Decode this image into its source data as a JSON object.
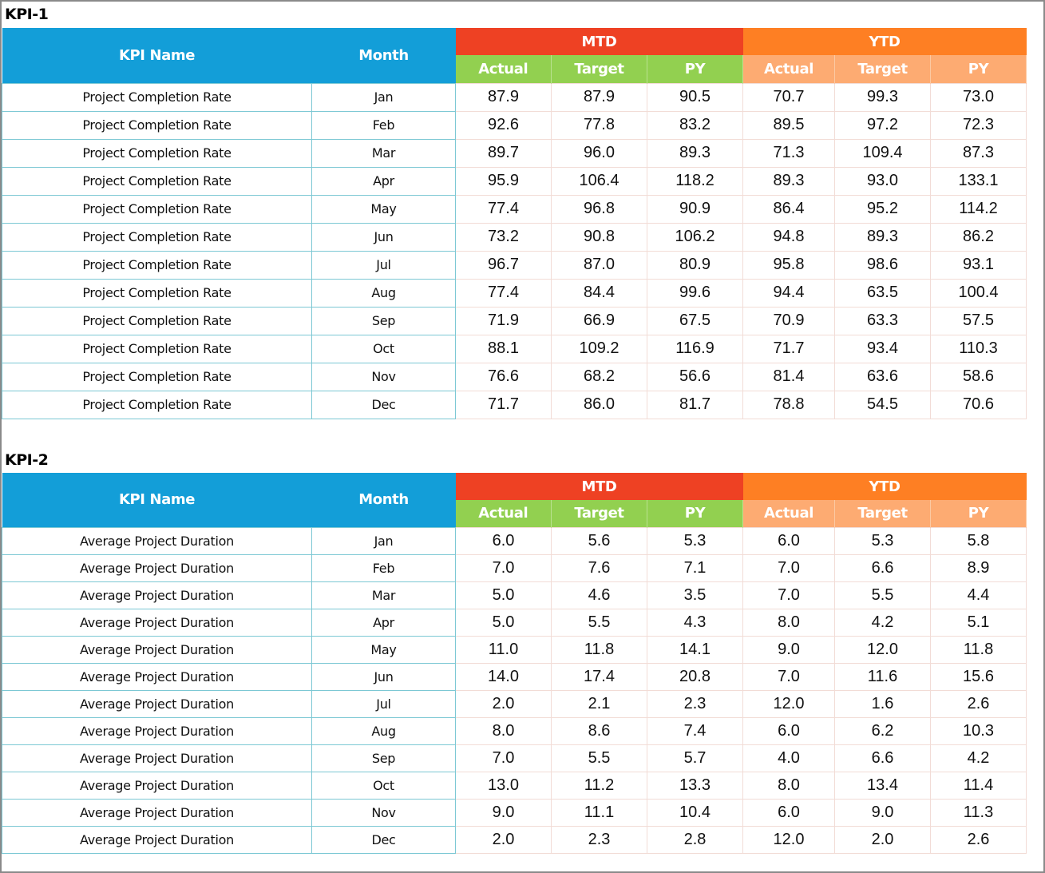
{
  "tables": [
    {
      "title": "KPI-1",
      "headers": {
        "kpi_name": "KPI Name",
        "month": "Month",
        "mtd": "MTD",
        "ytd": "YTD",
        "sub": [
          "Actual",
          "Target",
          "PY",
          "Actual",
          "Target",
          "PY"
        ]
      },
      "rows": [
        {
          "name": "Project Completion Rate",
          "month": "Jan",
          "vals": [
            "87.9",
            "87.9",
            "90.5",
            "70.7",
            "99.3",
            "73.0"
          ]
        },
        {
          "name": "Project Completion Rate",
          "month": "Feb",
          "vals": [
            "92.6",
            "77.8",
            "83.2",
            "89.5",
            "97.2",
            "72.3"
          ]
        },
        {
          "name": "Project Completion Rate",
          "month": "Mar",
          "vals": [
            "89.7",
            "96.0",
            "89.3",
            "71.3",
            "109.4",
            "87.3"
          ]
        },
        {
          "name": "Project Completion Rate",
          "month": "Apr",
          "vals": [
            "95.9",
            "106.4",
            "118.2",
            "89.3",
            "93.0",
            "133.1"
          ]
        },
        {
          "name": "Project Completion Rate",
          "month": "May",
          "vals": [
            "77.4",
            "96.8",
            "90.9",
            "86.4",
            "95.2",
            "114.2"
          ]
        },
        {
          "name": "Project Completion Rate",
          "month": "Jun",
          "vals": [
            "73.2",
            "90.8",
            "106.2",
            "94.8",
            "89.3",
            "86.2"
          ]
        },
        {
          "name": "Project Completion Rate",
          "month": "Jul",
          "vals": [
            "96.7",
            "87.0",
            "80.9",
            "95.8",
            "98.6",
            "93.1"
          ]
        },
        {
          "name": "Project Completion Rate",
          "month": "Aug",
          "vals": [
            "77.4",
            "84.4",
            "99.6",
            "94.4",
            "63.5",
            "100.4"
          ]
        },
        {
          "name": "Project Completion Rate",
          "month": "Sep",
          "vals": [
            "71.9",
            "66.9",
            "67.5",
            "70.9",
            "63.3",
            "57.5"
          ]
        },
        {
          "name": "Project Completion Rate",
          "month": "Oct",
          "vals": [
            "88.1",
            "109.2",
            "116.9",
            "71.7",
            "93.4",
            "110.3"
          ]
        },
        {
          "name": "Project Completion Rate",
          "month": "Nov",
          "vals": [
            "76.6",
            "68.2",
            "56.6",
            "81.4",
            "63.6",
            "58.6"
          ]
        },
        {
          "name": "Project Completion Rate",
          "month": "Dec",
          "vals": [
            "71.7",
            "86.0",
            "81.7",
            "78.8",
            "54.5",
            "70.6"
          ]
        }
      ]
    },
    {
      "title": "KPI-2",
      "headers": {
        "kpi_name": "KPI Name",
        "month": "Month",
        "mtd": "MTD",
        "ytd": "YTD",
        "sub": [
          "Actual",
          "Target",
          "PY",
          "Actual",
          "Target",
          "PY"
        ]
      },
      "rows": [
        {
          "name": "Average Project Duration",
          "month": "Jan",
          "vals": [
            "6.0",
            "5.6",
            "5.3",
            "6.0",
            "5.3",
            "5.8"
          ]
        },
        {
          "name": "Average Project Duration",
          "month": "Feb",
          "vals": [
            "7.0",
            "7.6",
            "7.1",
            "7.0",
            "6.6",
            "8.9"
          ]
        },
        {
          "name": "Average Project Duration",
          "month": "Mar",
          "vals": [
            "5.0",
            "4.6",
            "3.5",
            "7.0",
            "5.5",
            "4.4"
          ]
        },
        {
          "name": "Average Project Duration",
          "month": "Apr",
          "vals": [
            "5.0",
            "5.5",
            "4.3",
            "8.0",
            "4.2",
            "5.1"
          ]
        },
        {
          "name": "Average Project Duration",
          "month": "May",
          "vals": [
            "11.0",
            "11.8",
            "14.1",
            "9.0",
            "12.0",
            "11.8"
          ]
        },
        {
          "name": "Average Project Duration",
          "month": "Jun",
          "vals": [
            "14.0",
            "17.4",
            "20.8",
            "7.0",
            "11.6",
            "15.6"
          ]
        },
        {
          "name": "Average Project Duration",
          "month": "Jul",
          "vals": [
            "2.0",
            "2.1",
            "2.3",
            "12.0",
            "1.6",
            "2.6"
          ]
        },
        {
          "name": "Average Project Duration",
          "month": "Aug",
          "vals": [
            "8.0",
            "8.6",
            "7.4",
            "6.0",
            "6.2",
            "10.3"
          ]
        },
        {
          "name": "Average Project Duration",
          "month": "Sep",
          "vals": [
            "7.0",
            "5.5",
            "5.7",
            "4.0",
            "6.6",
            "4.2"
          ]
        },
        {
          "name": "Average Project Duration",
          "month": "Oct",
          "vals": [
            "13.0",
            "11.2",
            "13.3",
            "8.0",
            "13.4",
            "11.4"
          ]
        },
        {
          "name": "Average Project Duration",
          "month": "Nov",
          "vals": [
            "9.0",
            "11.1",
            "10.4",
            "6.0",
            "9.0",
            "11.3"
          ]
        },
        {
          "name": "Average Project Duration",
          "month": "Dec",
          "vals": [
            "2.0",
            "2.3",
            "2.8",
            "12.0",
            "2.0",
            "2.6"
          ]
        }
      ]
    }
  ],
  "colors": {
    "header_blue": "#139ed8",
    "mtd_red": "#ee4123",
    "ytd_orange": "#fe7f23",
    "mtd_sub_green": "#92d050",
    "ytd_sub_peach": "#fdab72"
  }
}
